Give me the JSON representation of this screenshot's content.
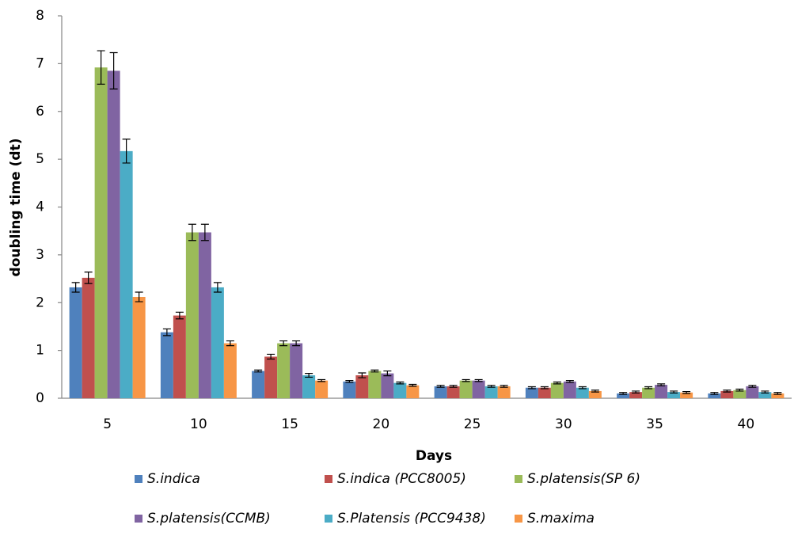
{
  "chart_data": {
    "type": "bar",
    "x_label": "Days",
    "y_label": "doubling time (dt)",
    "categories": [
      "5",
      "10",
      "15",
      "20",
      "25",
      "30",
      "35",
      "40"
    ],
    "ylim": [
      0,
      8
    ],
    "yticks": [
      0,
      1,
      2,
      3,
      4,
      5,
      6,
      7,
      8
    ],
    "grid": false,
    "series": [
      {
        "name": "S.indica",
        "color": "#4f81bd",
        "values": [
          2.32,
          1.38,
          0.57,
          0.35,
          0.25,
          0.22,
          0.1,
          0.1
        ],
        "errors": [
          0.1,
          0.07,
          0.02,
          0.02,
          0.02,
          0.02,
          0.02,
          0.02
        ]
      },
      {
        "name": "S.indica  (PCC8005)",
        "color": "#c0504d",
        "values": [
          2.52,
          1.73,
          0.87,
          0.48,
          0.25,
          0.22,
          0.13,
          0.15
        ],
        "errors": [
          0.12,
          0.07,
          0.05,
          0.05,
          0.02,
          0.02,
          0.02,
          0.02
        ]
      },
      {
        "name": "S.platensis(SP 6)",
        "color": "#9bbb59",
        "values": [
          6.92,
          3.47,
          1.15,
          0.57,
          0.37,
          0.32,
          0.22,
          0.17
        ],
        "errors": [
          0.35,
          0.17,
          0.05,
          0.02,
          0.02,
          0.02,
          0.02,
          0.02
        ]
      },
      {
        "name": "S.platensis(CCMB)",
        "color": "#8064a2",
        "values": [
          6.85,
          3.47,
          1.15,
          0.52,
          0.37,
          0.35,
          0.28,
          0.25
        ],
        "errors": [
          0.38,
          0.17,
          0.05,
          0.05,
          0.02,
          0.02,
          0.02,
          0.02
        ]
      },
      {
        "name": "S.Platensis (PCC9438)",
        "color": "#4bacc6",
        "values": [
          5.17,
          2.32,
          0.48,
          0.32,
          0.25,
          0.22,
          0.13,
          0.13
        ],
        "errors": [
          0.25,
          0.1,
          0.04,
          0.02,
          0.02,
          0.02,
          0.02,
          0.02
        ]
      },
      {
        "name": "S.maxima",
        "color": "#f79646",
        "values": [
          2.12,
          1.15,
          0.37,
          0.27,
          0.25,
          0.15,
          0.12,
          0.1
        ],
        "errors": [
          0.1,
          0.05,
          0.02,
          0.02,
          0.02,
          0.02,
          0.02,
          0.02
        ]
      }
    ]
  }
}
